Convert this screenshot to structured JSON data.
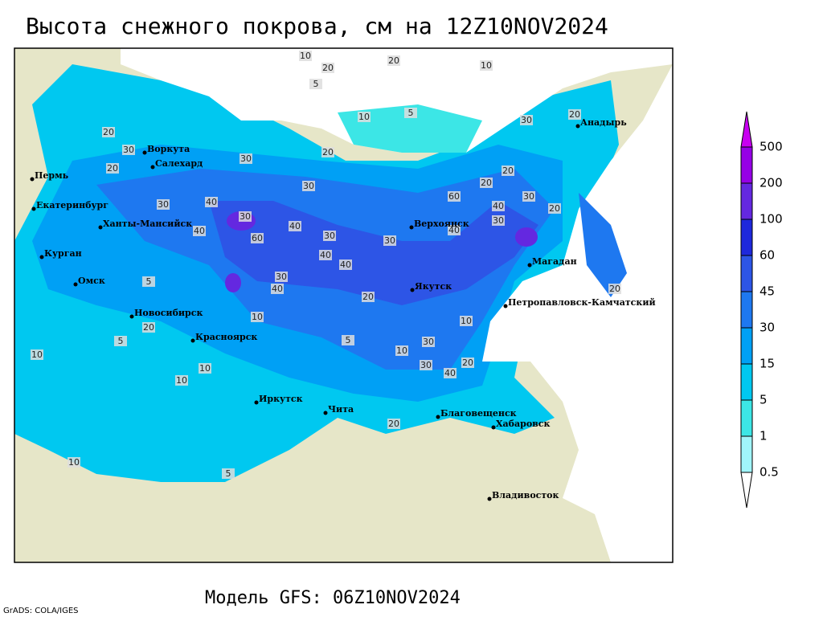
{
  "title": "Высота снежного покрова, см на 12Z10NOV2024",
  "model": "Модель GFS: 06Z10NOV2024",
  "credit": "GrADS: COLA/IGES",
  "legend": {
    "levels": [
      "0.5",
      "1",
      "5",
      "15",
      "30",
      "45",
      "60",
      "100",
      "200",
      "500"
    ],
    "colors": [
      "#ffffff",
      "#a0f5fa",
      "#3ce6e6",
      "#00c8f0",
      "#00a0f5",
      "#1e78f0",
      "#2d55e6",
      "#1e28dc",
      "#6428e0",
      "#9600e6",
      "#c800f0"
    ]
  },
  "cities": [
    "Воркута",
    "Салехард",
    "Пермь",
    "Екатеринбург",
    "Ханты-Мансийск",
    "Курган",
    "Омск",
    "Новосибирск",
    "Красноярск",
    "Иркутск",
    "Чита",
    "Благовещенск",
    "Хабаровск",
    "Владивосток",
    "Верхоянск",
    "Якутск",
    "Магадан",
    "Петропавловск-Камчатский",
    "Анадырь"
  ],
  "contour_labels": [
    "10",
    "20",
    "20",
    "10",
    "5",
    "10",
    "5",
    "20",
    "30",
    "20",
    "30",
    "20",
    "30",
    "40",
    "30",
    "40",
    "30",
    "40",
    "60",
    "30",
    "40",
    "40",
    "30",
    "40",
    "20",
    "30",
    "60",
    "20",
    "30",
    "40",
    "30",
    "40",
    "20",
    "30",
    "20",
    "20",
    "10",
    "10",
    "5",
    "10",
    "5",
    "10",
    "20",
    "10",
    "10",
    "5",
    "10",
    "5",
    "40",
    "30",
    "20",
    "20",
    "30",
    "20"
  ]
}
